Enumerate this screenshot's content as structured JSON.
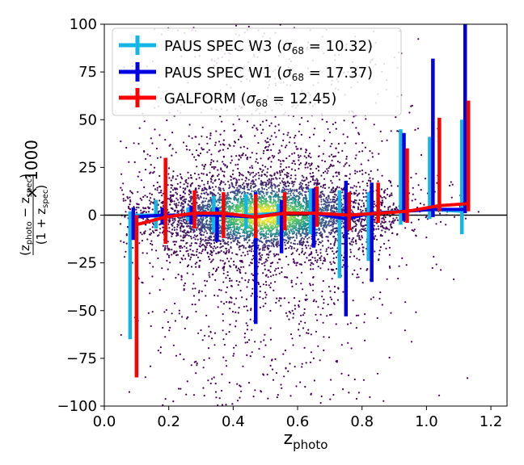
{
  "chart_data": {
    "type": "scatter",
    "xlim": [
      0.0,
      1.25
    ],
    "ylim": [
      -100,
      100
    ],
    "xticks": [
      "0.0",
      "0.2",
      "0.4",
      "0.6",
      "0.8",
      "1.0",
      "1.2"
    ],
    "yticks": [
      "100",
      "75",
      "50",
      "25",
      "0",
      "−25",
      "−50",
      "−75",
      "−100"
    ],
    "xlabel": "z_photo",
    "ylabel": "(z_photo − z_spec) / (1 + z_spec) × 1000",
    "zero_line": true,
    "legend_position": "top-left",
    "background_scatter": {
      "description": "galaxy points coloured by local density (viridis)",
      "colormap": "viridis",
      "approx_points": 6000
    },
    "series": [
      {
        "name": "PAUS SPEC W3 (σ68 = 10.32)",
        "legend_main": "PAUS SPEC W3 (",
        "legend_sym": "σ",
        "legend_sub": "68",
        "legend_val": " = 10.32)",
        "color": "#12b7e6",
        "x": [
          0.08,
          0.16,
          0.26,
          0.34,
          0.44,
          0.54,
          0.64,
          0.73,
          0.82,
          0.92,
          1.01,
          1.11
        ],
        "y": [
          0,
          0,
          0,
          0,
          0,
          1,
          1,
          -1,
          1,
          2,
          3,
          2
        ],
        "yerr_low": [
          -65,
          -7,
          -3,
          -9,
          -7,
          -6,
          -11,
          -32,
          -25,
          -7,
          -5,
          -12
        ],
        "yerr_high": [
          2,
          8,
          4,
          10,
          11,
          5,
          13,
          14,
          11,
          43,
          38,
          48
        ]
      },
      {
        "name": "PAUS SPEC W1 (σ68 = 17.37)",
        "legend_main": "PAUS SPEC W1 (",
        "legend_sym": "σ",
        "legend_sub": "68",
        "legend_val": " = 17.37)",
        "color": "#0000e0",
        "x": [
          0.09,
          0.18,
          0.27,
          0.35,
          0.47,
          0.55,
          0.65,
          0.75,
          0.83,
          0.93,
          1.02,
          1.12
        ],
        "y": [
          -1,
          0,
          0,
          0,
          -1,
          1,
          1,
          -2,
          1,
          2,
          3,
          3
        ],
        "yerr_low": [
          -12,
          -5,
          -5,
          -14,
          -56,
          -21,
          -18,
          -51,
          -36,
          -5,
          -4,
          -2
        ],
        "yerr_high": [
          5,
          4,
          5,
          4,
          13,
          7,
          13,
          20,
          16,
          41,
          79,
          97
        ]
      },
      {
        "name": "GALFORM (σ68 = 12.45)",
        "legend_main": "GALFORM (",
        "legend_sym": "σ",
        "legend_sub": "68",
        "legend_val": " = 12.45)",
        "color": "#ff0000",
        "x": [
          0.1,
          0.19,
          0.28,
          0.37,
          0.47,
          0.56,
          0.66,
          0.76,
          0.85,
          0.94,
          1.04,
          1.13
        ],
        "y": [
          -5,
          -1,
          1,
          1,
          -1,
          1,
          1,
          0,
          1,
          2,
          5,
          6
        ],
        "yerr_low": [
          -80,
          -14,
          -8,
          -13,
          -11,
          -9,
          -7,
          -8,
          -5,
          -6,
          -3,
          -4
        ],
        "yerr_high": [
          5,
          31,
          12,
          11,
          12,
          11,
          14,
          12,
          16,
          33,
          46,
          54
        ]
      }
    ]
  }
}
